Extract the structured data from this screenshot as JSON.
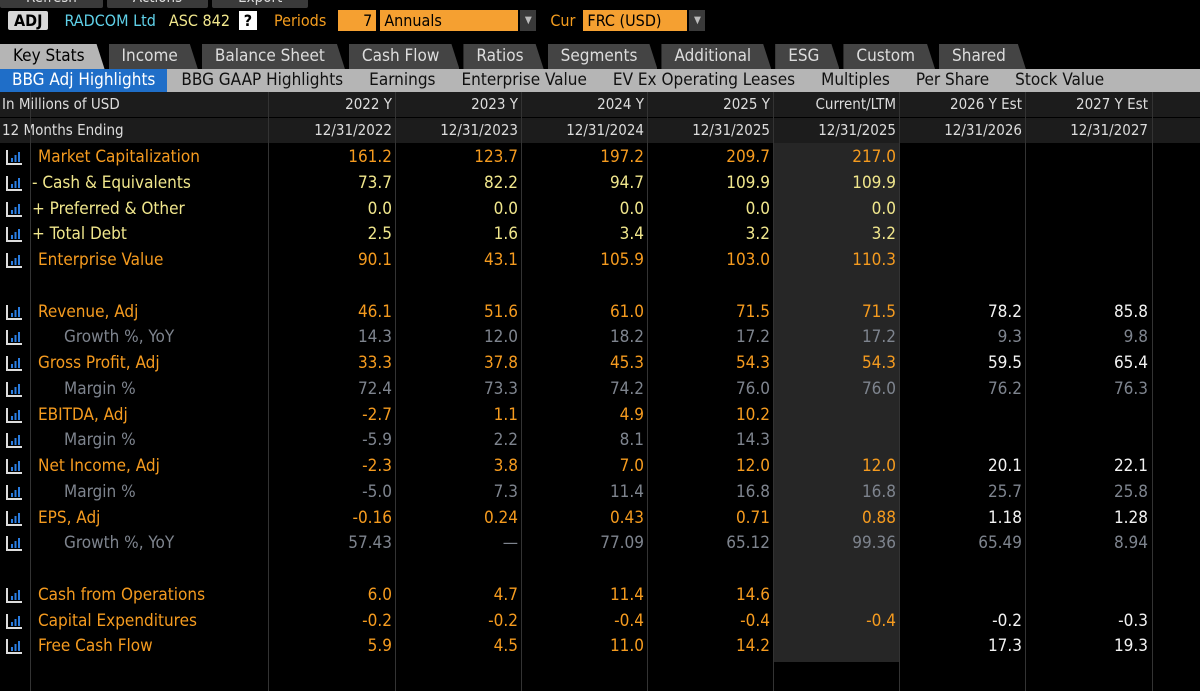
{
  "top_menu": [
    "Refresh",
    "Actions",
    "Export"
  ],
  "toolbar": {
    "mode": "ADJ",
    "company": "RADCOM Ltd",
    "standard": "ASC 842",
    "help": "?",
    "periods_label": "Periods",
    "periods_value": "7",
    "period_type": "Annuals",
    "cur_label": "Cur",
    "currency": "FRC (USD)"
  },
  "tabs": [
    "Key Stats",
    "Income",
    "Balance Sheet",
    "Cash Flow",
    "Ratios",
    "Segments",
    "Additional",
    "ESG",
    "Custom",
    "Shared"
  ],
  "active_tab": "Key Stats",
  "subtabs": [
    "BBG Adj Highlights",
    "BBG GAAP Highlights",
    "Earnings",
    "Enterprise Value",
    "EV Ex Operating Leases",
    "Multiples",
    "Per Share",
    "Stock Value"
  ],
  "active_subtab": "BBG Adj Highlights",
  "header": {
    "units": "In Millions of USD",
    "period_label": "12 Months Ending",
    "columns": [
      {
        "period": "2022 Y",
        "date": "12/31/2022"
      },
      {
        "period": "2023 Y",
        "date": "12/31/2023"
      },
      {
        "period": "2024 Y",
        "date": "12/31/2024"
      },
      {
        "period": "2025 Y",
        "date": "12/31/2025"
      },
      {
        "period": "Current/LTM",
        "date": "12/31/2025"
      },
      {
        "period": "2026 Y Est",
        "date": "12/31/2026"
      },
      {
        "period": "2027 Y Est",
        "date": "12/31/2027"
      }
    ]
  },
  "colors": {
    "orange": "#f59b1f",
    "yellow": "#f0e68c",
    "gray": "#7e848e",
    "white": "#f2f2f2",
    "active_subtab": "#1f6ec8"
  },
  "rows": [
    {
      "label": "Market Capitalization",
      "style": "orange",
      "values": [
        "161.2",
        "123.7",
        "197.2",
        "209.7",
        "217.0",
        "",
        ""
      ]
    },
    {
      "label": "- Cash & Equivalents",
      "style": "yellow",
      "values": [
        "73.7",
        "82.2",
        "94.7",
        "109.9",
        "109.9",
        "",
        ""
      ]
    },
    {
      "label": "+ Preferred & Other",
      "style": "yellow",
      "values": [
        "0.0",
        "0.0",
        "0.0",
        "0.0",
        "0.0",
        "",
        ""
      ]
    },
    {
      "label": "+ Total Debt",
      "style": "yellow",
      "values": [
        "2.5",
        "1.6",
        "3.4",
        "3.2",
        "3.2",
        "",
        ""
      ]
    },
    {
      "label": "Enterprise Value",
      "style": "orange",
      "values": [
        "90.1",
        "43.1",
        "105.9",
        "103.0",
        "110.3",
        "",
        ""
      ]
    },
    null,
    {
      "label": "Revenue, Adj",
      "style": "orange",
      "values": [
        "46.1",
        "51.6",
        "61.0",
        "71.5",
        "71.5",
        "78.2",
        "85.8"
      ]
    },
    {
      "label": "Growth %, YoY",
      "style": "gray",
      "values": [
        "14.3",
        "12.0",
        "18.2",
        "17.2",
        "17.2",
        "9.3",
        "9.8"
      ]
    },
    {
      "label": "Gross Profit, Adj",
      "style": "orange",
      "values": [
        "33.3",
        "37.8",
        "45.3",
        "54.3",
        "54.3",
        "59.5",
        "65.4"
      ]
    },
    {
      "label": "Margin %",
      "style": "gray",
      "values": [
        "72.4",
        "73.3",
        "74.2",
        "76.0",
        "76.0",
        "76.2",
        "76.3"
      ]
    },
    {
      "label": "EBITDA, Adj",
      "style": "orange",
      "values": [
        "-2.7",
        "1.1",
        "4.9",
        "10.2",
        "",
        "",
        ""
      ]
    },
    {
      "label": "Margin %",
      "style": "gray",
      "values": [
        "-5.9",
        "2.2",
        "8.1",
        "14.3",
        "",
        "",
        ""
      ]
    },
    {
      "label": "Net Income, Adj",
      "style": "orange",
      "values": [
        "-2.3",
        "3.8",
        "7.0",
        "12.0",
        "12.0",
        "20.1",
        "22.1"
      ]
    },
    {
      "label": "Margin %",
      "style": "gray",
      "values": [
        "-5.0",
        "7.3",
        "11.4",
        "16.8",
        "16.8",
        "25.7",
        "25.8"
      ]
    },
    {
      "label": "EPS, Adj",
      "style": "orange",
      "values": [
        "-0.16",
        "0.24",
        "0.43",
        "0.71",
        "0.88",
        "1.18",
        "1.28"
      ]
    },
    {
      "label": "Growth %, YoY",
      "style": "gray",
      "values": [
        "57.43",
        "—",
        "77.09",
        "65.12",
        "99.36",
        "65.49",
        "8.94"
      ]
    },
    null,
    {
      "label": "Cash from Operations",
      "style": "orange",
      "values": [
        "6.0",
        "4.7",
        "11.4",
        "14.6",
        "",
        "",
        ""
      ]
    },
    {
      "label": "Capital Expenditures",
      "style": "orange",
      "values": [
        "-0.2",
        "-0.2",
        "-0.4",
        "-0.4",
        "-0.4",
        "-0.2",
        "-0.3"
      ]
    },
    {
      "label": "Free Cash Flow",
      "style": "orange",
      "values": [
        "5.9",
        "4.5",
        "11.0",
        "14.2",
        "",
        "17.3",
        "19.3"
      ]
    }
  ]
}
